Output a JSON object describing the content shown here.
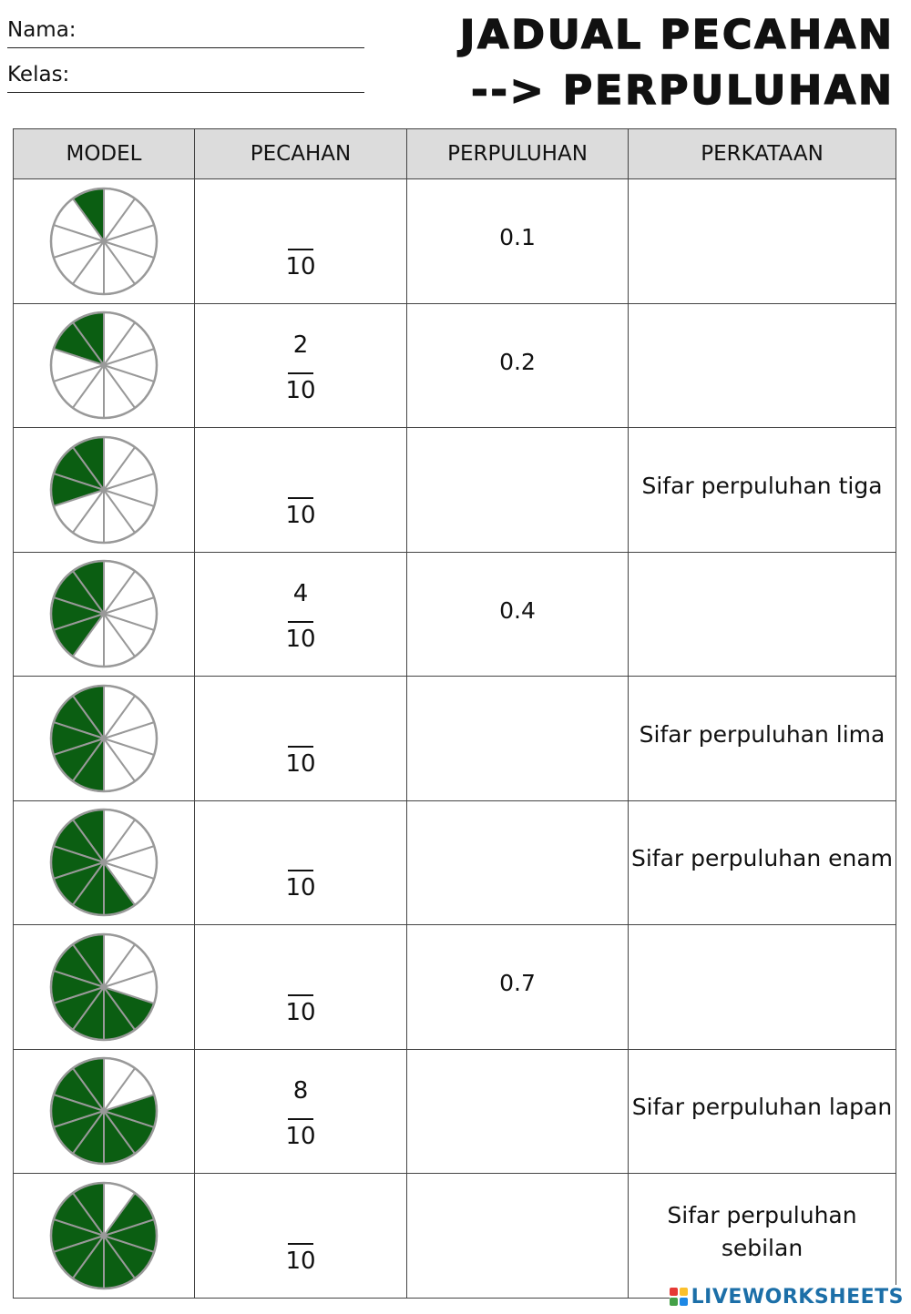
{
  "header": {
    "name_label": "Nama:",
    "class_label": "Kelas:",
    "title_line1": "JADUAL PECAHAN",
    "title_line2": "--> PERPULUHAN"
  },
  "table": {
    "columns": [
      "MODEL",
      "PECAHAN",
      "PERPULUHAN",
      "PERKATAAN"
    ],
    "rows": [
      {
        "shaded": 1,
        "numerator": "",
        "denominator": "10",
        "decimal": "0.1",
        "words": ""
      },
      {
        "shaded": 2,
        "numerator": "2",
        "denominator": "10",
        "decimal": "0.2",
        "words": ""
      },
      {
        "shaded": 3,
        "numerator": "",
        "denominator": "10",
        "decimal": "",
        "words": "Sifar perpuluhan tiga"
      },
      {
        "shaded": 4,
        "numerator": "4",
        "denominator": "10",
        "decimal": "0.4",
        "words": ""
      },
      {
        "shaded": 5,
        "numerator": "",
        "denominator": "10",
        "decimal": "",
        "words": "Sifar perpuluhan lima"
      },
      {
        "shaded": 6,
        "numerator": "",
        "denominator": "10",
        "decimal": "",
        "words": "Sifar perpuluhan enam"
      },
      {
        "shaded": 7,
        "numerator": "",
        "denominator": "10",
        "decimal": "0.7",
        "words": ""
      },
      {
        "shaded": 8,
        "numerator": "8",
        "denominator": "10",
        "decimal": "",
        "words": "Sifar perpuluhan lapan"
      },
      {
        "shaded": 9,
        "numerator": "",
        "denominator": "10",
        "decimal": "",
        "words": "Sifar perpuluhan sebilan"
      }
    ]
  },
  "model_style": {
    "total_parts": 10,
    "fill_color": "#0b5e12",
    "empty_color": "#ffffff",
    "line_color": "#999999"
  },
  "watermark": {
    "text": "LIVEWORKSHEETS",
    "colors": [
      "#e53935",
      "#fbc02d",
      "#43a047",
      "#1e88e5"
    ]
  }
}
